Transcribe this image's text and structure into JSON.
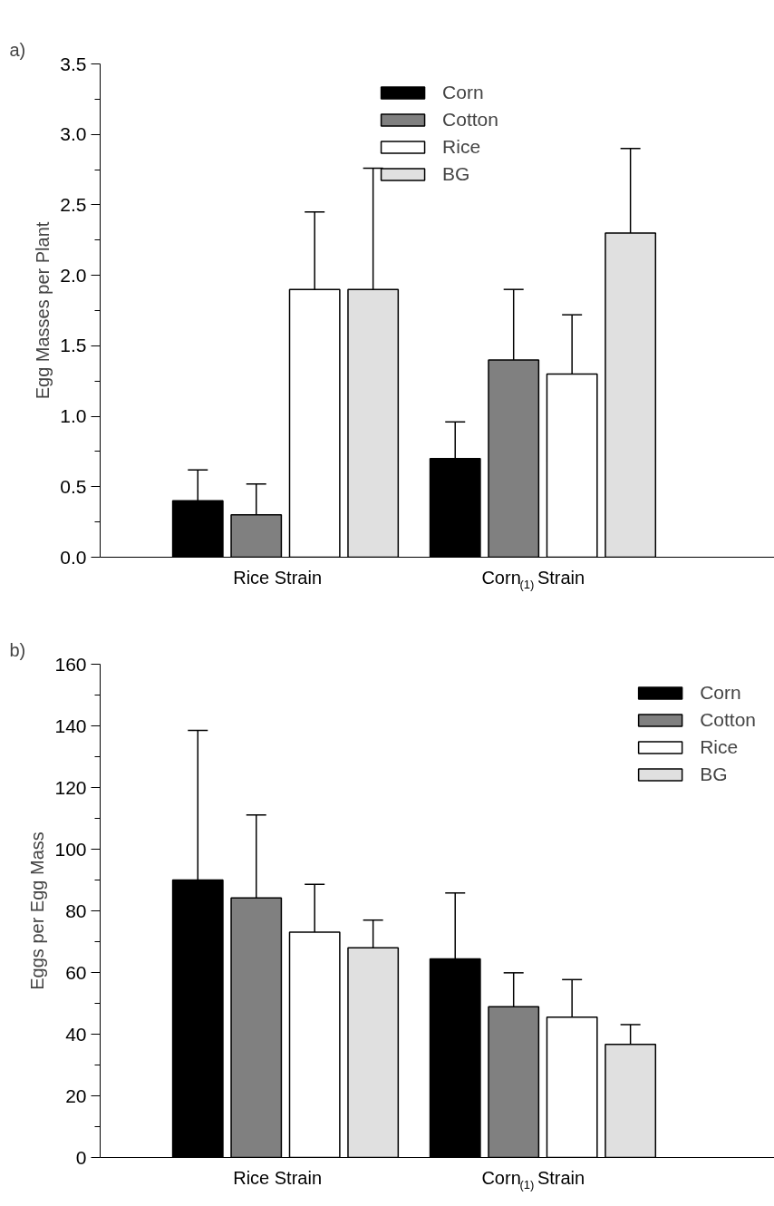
{
  "chart_data": [
    {
      "type": "bar",
      "title": "a)",
      "ylabel": "Egg Masses per Plant",
      "categories": [
        "Rice Strain",
        "Corn$_{(1)}$ Strain"
      ],
      "ylim": [
        0,
        3.5
      ],
      "yticks": [
        {
          "value": 0,
          "label": "0.0"
        },
        {
          "value": 0.25,
          "label": null
        },
        0.5,
        {
          "value": 0.75,
          "label": null
        },
        {
          "value": 1,
          "label": "1.0"
        },
        {
          "value": 1.25,
          "label": null
        },
        1.5,
        {
          "value": 1.75,
          "label": null
        },
        {
          "value": 2,
          "label": "2.0"
        },
        {
          "value": 2.25,
          "label": null
        },
        2.5,
        {
          "value": 2.75,
          "label": null
        },
        {
          "value": 3,
          "label": "3.0"
        },
        {
          "value": 3.25,
          "label": null
        },
        3.5
      ],
      "legend": "top",
      "grid": false,
      "series": [
        {
          "name": "Corn",
          "color": "#000000",
          "values": [
            0.4,
            0.7
          ],
          "errors": [
            [
              0.4,
              0.62
            ],
            [
              0.7,
              0.96
            ]
          ]
        },
        {
          "name": "Cotton",
          "color": "#808080",
          "values": [
            0.3,
            1.4
          ],
          "errors": [
            [
              0.3,
              0.52
            ],
            [
              1.4,
              1.9
            ]
          ]
        },
        {
          "name": "Rice",
          "color": "#ffffff",
          "values": [
            1.9,
            1.3
          ],
          "errors": [
            [
              1.9,
              2.45
            ],
            [
              1.3,
              1.72
            ]
          ]
        },
        {
          "name": "BG",
          "color": "#e0e0e0",
          "values": [
            1.9,
            2.3
          ],
          "errors": [
            [
              1.9,
              2.76
            ],
            [
              2.3,
              2.9
            ]
          ]
        }
      ]
    },
    {
      "type": "bar",
      "title": "b)",
      "ylabel": "Eggs per Egg Mass",
      "categories": [
        "Rice Strain",
        "Corn$_{(1)}$ Strain"
      ],
      "ylim": [
        0,
        160
      ],
      "yticks": [
        0,
        {
          "value": 10,
          "label": null
        },
        20,
        {
          "value": 30,
          "label": null
        },
        40,
        {
          "value": 50,
          "label": null
        },
        60,
        {
          "value": 70,
          "label": null
        },
        80,
        {
          "value": 90,
          "label": null
        },
        100,
        {
          "value": 110,
          "label": null
        },
        120,
        {
          "value": 130,
          "label": null
        },
        140,
        {
          "value": 150,
          "label": null
        },
        160
      ],
      "legend": "top right",
      "grid": false,
      "series": [
        {
          "name": "Corn",
          "color": "#000000",
          "values": [
            90,
            64.4
          ],
          "errors": [
            [
              90,
              138.5
            ],
            [
              64.4,
              85.8
            ]
          ]
        },
        {
          "name": "Cotton",
          "color": "#808080",
          "values": [
            84.2,
            48.9
          ],
          "errors": [
            [
              84.2,
              111.1
            ],
            [
              48.9,
              59.9
            ]
          ]
        },
        {
          "name": "Rice",
          "color": "#ffffff",
          "values": [
            73.1,
            45.5
          ],
          "errors": [
            [
              73.1,
              88.6
            ],
            [
              45.5,
              57.7
            ]
          ]
        },
        {
          "name": "BG",
          "color": "#e0e0e0",
          "values": [
            68,
            36.7
          ],
          "errors": [
            [
              68,
              77
            ],
            [
              36.7,
              43.1
            ]
          ]
        }
      ]
    }
  ]
}
